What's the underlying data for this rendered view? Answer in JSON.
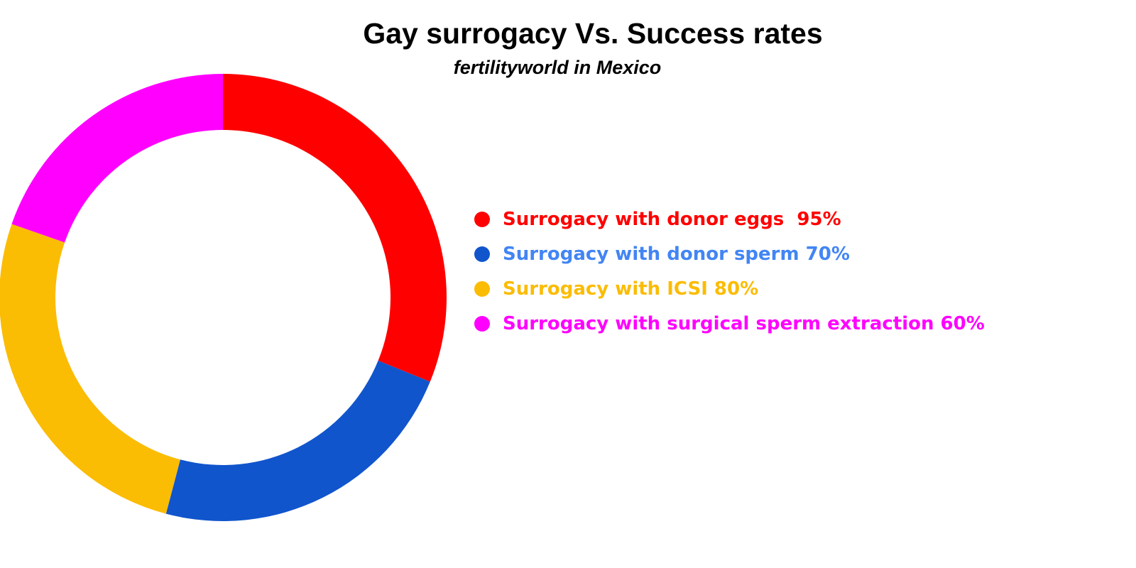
{
  "chart_data": {
    "type": "pie",
    "title": "Gay surrogacy Vs. Success rates",
    "subtitle": "fertilityworld in Mexico",
    "categories": [
      "Surrogacy with donor eggs",
      "Surrogacy with donor sperm",
      "Surrogacy with ICSI",
      "Surrogacy with surgical sperm extraction"
    ],
    "values": [
      95,
      70,
      80,
      60
    ],
    "unit": "%",
    "legend_position": "right",
    "slice_colors": [
      "#ff0000",
      "#1155cc",
      "#fbbc04",
      "#ff00ff"
    ],
    "legend_text_colors": [
      "#ff0000",
      "#4285f4",
      "#fbbc04",
      "#ff00ff"
    ],
    "legend_labels": [
      "Surrogacy with donor eggs  95%",
      "Surrogacy with donor sperm 70%",
      "Surrogacy with ICSI 80%",
      "Surrogacy with surgical sperm extraction 60%"
    ]
  }
}
